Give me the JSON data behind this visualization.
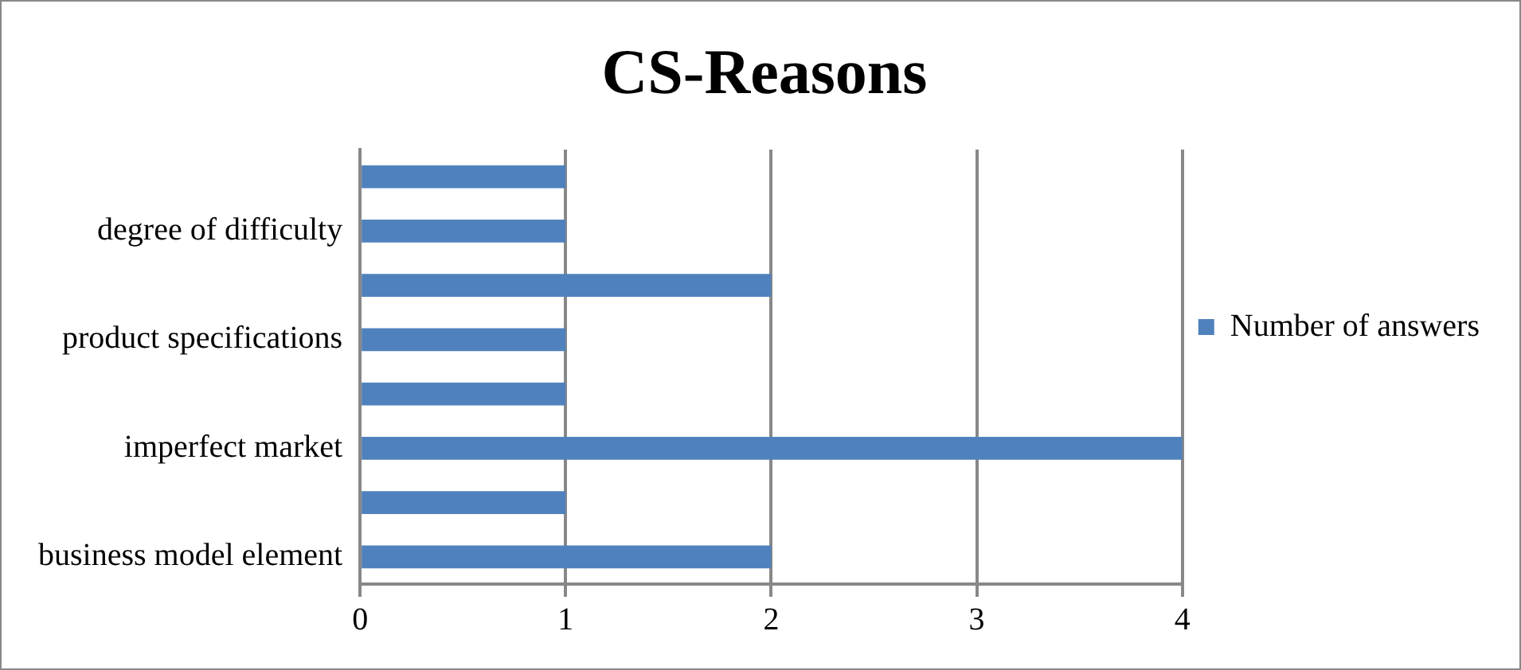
{
  "chart_data": {
    "type": "bar",
    "title": "CS-Reasons",
    "orientation": "horizontal",
    "categories": [
      null,
      "degree of difficulty",
      null,
      "product specifications",
      null,
      "imperfect market",
      null,
      "business model element"
    ],
    "series": [
      {
        "name": "Number of answers",
        "color": "#4f81bd",
        "values": [
          1,
          1,
          2,
          1,
          1,
          4,
          1,
          2
        ]
      }
    ],
    "xlim": [
      0,
      4
    ],
    "xticks": [
      0,
      1,
      2,
      3,
      4
    ],
    "grid": "x",
    "legend": "right"
  }
}
